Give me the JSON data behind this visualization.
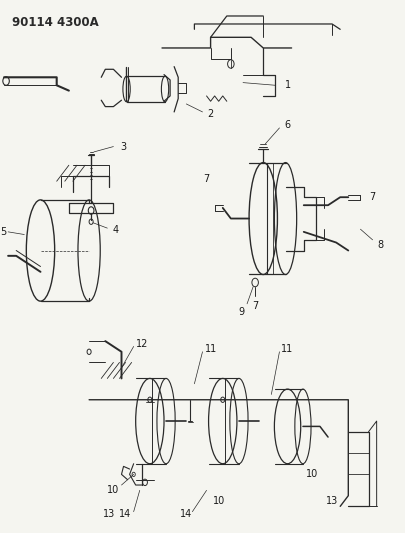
{
  "title_text": "90114 4300A",
  "bg_color": "#f5f5f0",
  "line_color": "#2a2a2a",
  "label_color": "#1a1a1a",
  "label_fontsize": 7.0,
  "fig_width": 4.05,
  "fig_height": 5.33,
  "dpi": 100,
  "title_fontsize": 8.5,
  "title_fontweight": "bold"
}
